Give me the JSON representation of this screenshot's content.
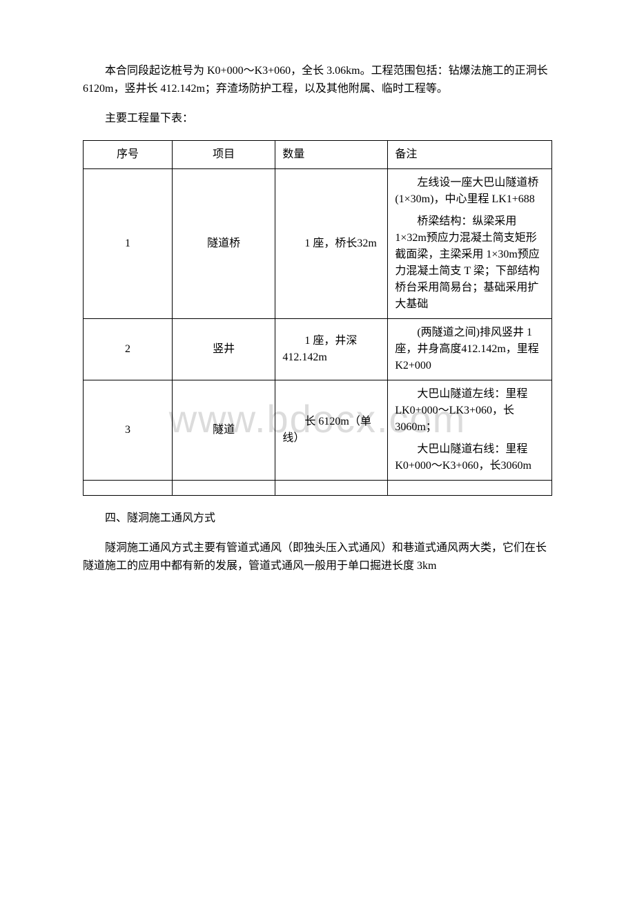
{
  "watermark": "www.bdocx.com",
  "intro_para": "本合同段起讫桩号为 K0+000～K3+060，全长 3.06km。工程范围包括：钻爆法施工的正洞长 6120m，竖井长 412.142m；弃渣场防护工程，以及其他附属、临时工程等。",
  "table_caption": "主要工程量下表：",
  "table": {
    "headers": {
      "seq": "序号",
      "item": "项目",
      "qty": "数量",
      "note": "备注"
    },
    "rows": [
      {
        "seq": "1",
        "item": "隧道桥",
        "qty": "1 座，桥长32m",
        "note_p1": "左线设一座大巴山隧道桥(1×30m)，中心里程 LK1+688",
        "note_p2": "桥梁结构：纵梁采用 1×32m预应力混凝土简支矩形截面梁，主梁采用 1×30m预应力混凝土简支 T 梁；下部结构桥台采用简易台；基础采用扩大基础"
      },
      {
        "seq": "2",
        "item": "竖井",
        "qty": "1 座，井深412.142m",
        "note_p1": "(两隧道之间)排风竖井 1 座，井身高度412.142m，里程K2+000"
      },
      {
        "seq": "3",
        "item": "隧道",
        "qty": "长 6120m（单线）",
        "note_p1": "大巴山隧道左线：里程LK0+000～LK3+060，长3060m；",
        "note_p2": "大巴山隧道右线：里程K0+000～K3+060，长3060m"
      }
    ]
  },
  "section_heading": "四、隧洞施工通风方式",
  "closing_para": "隧洞施工通风方式主要有管道式通风（即独头压入式通风）和巷道式通风两大类，它们在长隧道施工的应用中都有新的发展，管道式通风一般用于单口掘进长度 3km"
}
